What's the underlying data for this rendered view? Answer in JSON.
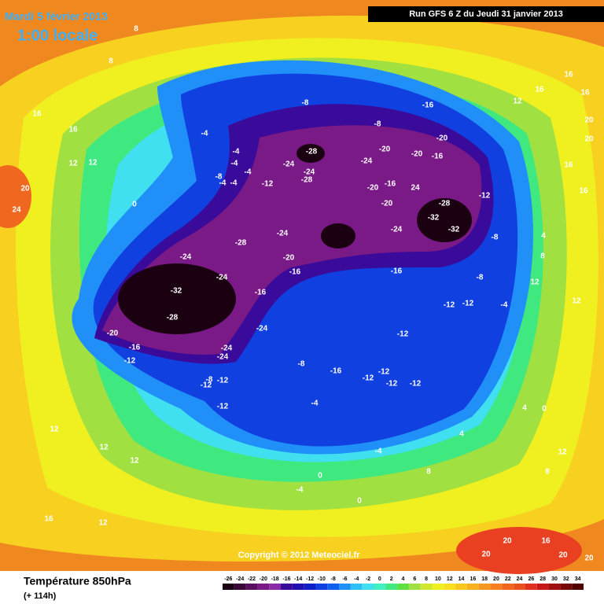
{
  "header": {
    "date": "Mardi 5 février 2013",
    "time": "1:00 locale",
    "run": "Run GFS 6 Z du Jeudi 31 janvier 2013"
  },
  "footer": {
    "title": "Température 850hPa",
    "lead": "(+ 114h)",
    "copyright": "Copyright © 2012 Meteociel.fr"
  },
  "legend": {
    "ticks": [
      "-26",
      "-24",
      "-22",
      "-20",
      "-18",
      "-16",
      "-14",
      "-12",
      "-10",
      "-8",
      "-6",
      "-4",
      "-2",
      "0",
      "2",
      "4",
      "6",
      "8",
      "10",
      "12",
      "14",
      "16",
      "18",
      "20",
      "22",
      "24",
      "26",
      "28",
      "30",
      "32",
      "34"
    ],
    "colors": [
      "#1a0010",
      "#3a0838",
      "#5a0e5e",
      "#7a1a86",
      "#8a2aa8",
      "#3a0a9a",
      "#2010b0",
      "#1020c8",
      "#1040e0",
      "#1060f0",
      "#2090f8",
      "#30c0f8",
      "#40e0f0",
      "#40f0c0",
      "#40e880",
      "#60e040",
      "#a0e040",
      "#d0e830",
      "#f0f020",
      "#f8e020",
      "#f8c820",
      "#f8b020",
      "#f89820",
      "#f88020",
      "#f06820",
      "#e85020",
      "#e03020",
      "#c81818",
      "#a01010",
      "#780808",
      "#500000"
    ]
  },
  "map_labels": [
    "-4",
    "-4",
    "-4",
    "-4",
    "-8",
    "-4",
    "-4",
    "-12",
    "-24",
    "-28",
    "-24",
    "-28",
    "-24",
    "-20",
    "-20",
    "-20",
    "-16",
    "-16",
    "-8",
    "-8",
    "12",
    "16",
    "16",
    "16",
    "20",
    "20",
    "16",
    "16",
    "-20",
    "-16",
    "24",
    "-20",
    "-28",
    "-32",
    "-32",
    "-24",
    "-12",
    "-8",
    "-24",
    "-28",
    "-24",
    "-20",
    "-16",
    "-24",
    "-32",
    "-16",
    "-28",
    "-24",
    "-20",
    "-16",
    "-24",
    "-24",
    "-12",
    "-16",
    "-8",
    "-12",
    "-12",
    "-4",
    "-12",
    "-8",
    "-16",
    "-12",
    "-12",
    "-12",
    "-12",
    "-8",
    "-12",
    "-12",
    "-12",
    "-4",
    "16",
    "16",
    "12",
    "12",
    "20",
    "24",
    "8",
    "8",
    "12",
    "12",
    "12",
    "16",
    "12",
    "20",
    "20",
    "20",
    "20",
    "16",
    "8",
    "4",
    "-4",
    "0",
    "0",
    "-4",
    "8",
    "12",
    "0",
    "4",
    "12",
    "8",
    "4",
    "12",
    "0"
  ]
}
